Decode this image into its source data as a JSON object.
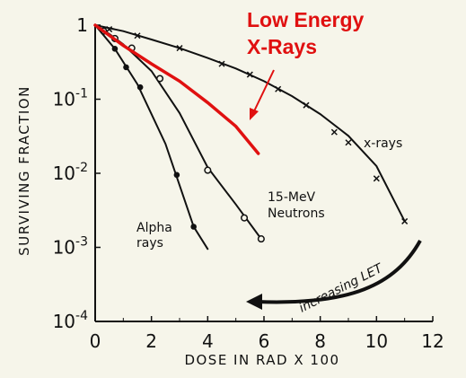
{
  "chart_data": {
    "type": "line",
    "xlabel": "DOSE IN RAD  X 100",
    "ylabel": "SURVIVING FRACTION",
    "xlim": [
      0,
      12
    ],
    "ylim": [
      0.0001,
      1
    ],
    "y_scale": "log",
    "x_ticks": [
      "0",
      "2",
      "4",
      "6",
      "8",
      "10",
      "12"
    ],
    "y_ticks": [
      {
        "value": 1,
        "base": "1",
        "exp": ""
      },
      {
        "value": 0.1,
        "base": "10",
        "exp": "-1"
      },
      {
        "value": 0.01,
        "base": "10",
        "exp": "-2"
      },
      {
        "value": 0.001,
        "base": "10",
        "exp": "-3"
      },
      {
        "value": 0.0001,
        "base": "10",
        "exp": "-4"
      }
    ],
    "grid": false,
    "series": [
      {
        "name": "x-rays",
        "marker": "x",
        "color": "#111111",
        "label_lines": [
          "x-rays"
        ],
        "points": [
          [
            0.5,
            0.88
          ],
          [
            1.5,
            0.72
          ],
          [
            3,
            0.49
          ],
          [
            4.5,
            0.3
          ],
          [
            5.5,
            0.215
          ],
          [
            6.5,
            0.137
          ],
          [
            7.5,
            0.083
          ],
          [
            8.5,
            0.036
          ],
          [
            9,
            0.026
          ],
          [
            10,
            0.0085
          ],
          [
            11,
            0.00225
          ]
        ],
        "curve": [
          [
            0,
            1
          ],
          [
            1,
            0.83
          ],
          [
            2,
            0.64
          ],
          [
            3,
            0.49
          ],
          [
            4,
            0.36
          ],
          [
            5,
            0.26
          ],
          [
            6,
            0.175
          ],
          [
            7,
            0.11
          ],
          [
            8,
            0.063
          ],
          [
            9,
            0.032
          ],
          [
            10,
            0.0125
          ],
          [
            11,
            0.00225
          ]
        ]
      },
      {
        "name": "15-MeV Neutrons",
        "marker": "open-circle",
        "color": "#111111",
        "label_lines": [
          "15-MeV",
          "Neutrons"
        ],
        "points": [
          [
            0.3,
            0.83
          ],
          [
            0.7,
            0.66
          ],
          [
            1.3,
            0.49
          ],
          [
            2.3,
            0.19
          ],
          [
            4,
            0.011
          ],
          [
            5.3,
            0.0025
          ],
          [
            5.9,
            0.0013
          ]
        ],
        "curve": [
          [
            0,
            1
          ],
          [
            0.5,
            0.76
          ],
          [
            1,
            0.55
          ],
          [
            2,
            0.24
          ],
          [
            3,
            0.065
          ],
          [
            4,
            0.012
          ],
          [
            5,
            0.0038
          ],
          [
            5.9,
            0.0013
          ]
        ]
      },
      {
        "name": "Alpha rays",
        "marker": "filled-circle",
        "color": "#111111",
        "label_lines": [
          "Alpha",
          "rays"
        ],
        "points": [
          [
            0.7,
            0.48
          ],
          [
            1.1,
            0.27
          ],
          [
            1.6,
            0.145
          ],
          [
            2.9,
            0.0095
          ],
          [
            3.5,
            0.0019
          ]
        ],
        "curve": [
          [
            0,
            1
          ],
          [
            0.7,
            0.48
          ],
          [
            1.5,
            0.16
          ],
          [
            2.5,
            0.025
          ],
          [
            3.5,
            0.0019
          ],
          [
            4,
            0.00095
          ]
        ]
      },
      {
        "name": "Low Energy X-Rays",
        "marker": "none",
        "color": "#e01010",
        "label_lines": [
          "Low Energy",
          "X-Rays"
        ],
        "points": [],
        "curve": [
          [
            0,
            1
          ],
          [
            1,
            0.53
          ],
          [
            2,
            0.3
          ],
          [
            3,
            0.175
          ],
          [
            4,
            0.09
          ],
          [
            5,
            0.043
          ],
          [
            5.8,
            0.0185
          ]
        ]
      }
    ],
    "annotations": [
      {
        "name": "increasing-let",
        "text": "increasing LET"
      }
    ]
  }
}
